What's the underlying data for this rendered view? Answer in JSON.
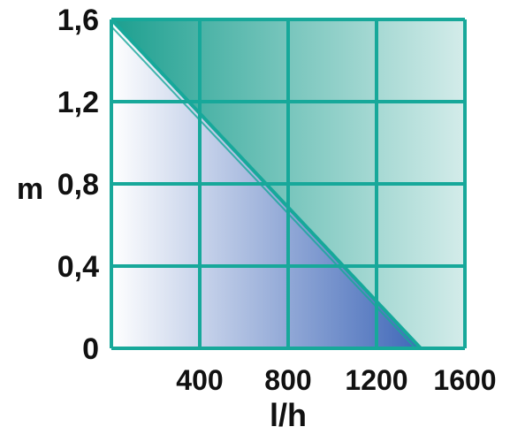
{
  "chart_data": {
    "type": "area",
    "title": "",
    "xlabel": "l/h",
    "ylabel": "m",
    "xlim": [
      0,
      1600
    ],
    "ylim": [
      0,
      1.6
    ],
    "x_ticks": [
      {
        "value": 400,
        "label": "400"
      },
      {
        "value": 800,
        "label": "800"
      },
      {
        "value": 1200,
        "label": "1200"
      },
      {
        "value": 1600,
        "label": "1600"
      }
    ],
    "y_ticks": [
      {
        "value": 0,
        "label": "0"
      },
      {
        "value": 0.4,
        "label": "0,4"
      },
      {
        "value": 0.8,
        "label": "0,8"
      },
      {
        "value": 1.2,
        "label": "1,2"
      },
      {
        "value": 1.6,
        "label": "1,6"
      }
    ],
    "grid": true,
    "series": [
      {
        "x": [
          0,
          1400
        ],
        "y": [
          1.6,
          0
        ]
      }
    ],
    "colors": {
      "grid": "#17a89a",
      "upper_fill_dark": "#1c9f8f",
      "upper_fill_light": "#d4ecea",
      "lower_fill_light": "#ffffff",
      "lower_fill_dark": "#3f67b8",
      "curve": "#17a89a"
    }
  }
}
